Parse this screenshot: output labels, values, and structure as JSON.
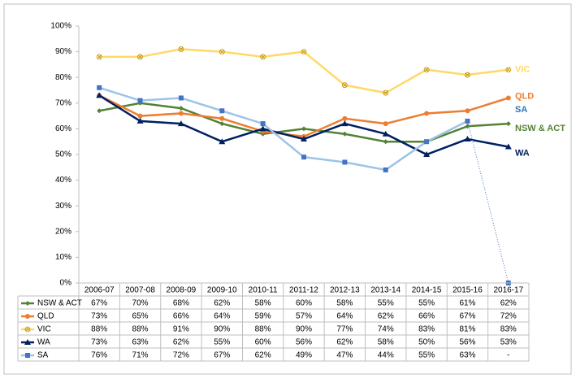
{
  "chart_data": {
    "type": "line",
    "categories": [
      "2006-07",
      "2007-08",
      "2008-09",
      "2009-10",
      "2010-11",
      "2011-12",
      "2012-13",
      "2013-14",
      "2014-15",
      "2015-16",
      "2016-17"
    ],
    "ylim": [
      0,
      100
    ],
    "yticks": [
      {
        "value": 0,
        "label": "0%"
      },
      {
        "value": 10,
        "label": "10%"
      },
      {
        "value": 20,
        "label": "20%"
      },
      {
        "value": 30,
        "label": "30%"
      },
      {
        "value": 40,
        "label": "40%"
      },
      {
        "value": 50,
        "label": "50%"
      },
      {
        "value": 60,
        "label": "60%"
      },
      {
        "value": 70,
        "label": "70%"
      },
      {
        "value": 80,
        "label": "80%"
      },
      {
        "value": 90,
        "label": "90%"
      },
      {
        "value": 100,
        "label": "100%"
      }
    ],
    "series": [
      {
        "name": "NSW & ACT",
        "color": "#548235",
        "marker": "diamond",
        "values": [
          67,
          70,
          68,
          62,
          58,
          60,
          58,
          55,
          55,
          61,
          62
        ],
        "value_labels": [
          "67%",
          "70%",
          "68%",
          "62%",
          "58%",
          "60%",
          "58%",
          "55%",
          "55%",
          "61%",
          "62%"
        ]
      },
      {
        "name": "QLD",
        "color": "#ED7D31",
        "marker": "circle",
        "values": [
          73,
          65,
          66,
          64,
          59,
          57,
          64,
          62,
          66,
          67,
          72
        ],
        "value_labels": [
          "73%",
          "65%",
          "66%",
          "64%",
          "59%",
          "57%",
          "64%",
          "62%",
          "66%",
          "67%",
          "72%"
        ]
      },
      {
        "name": "VIC",
        "color": "#FFD966",
        "marker": "xcircle",
        "values": [
          88,
          88,
          91,
          90,
          88,
          90,
          77,
          74,
          83,
          81,
          83
        ],
        "value_labels": [
          "88%",
          "88%",
          "91%",
          "90%",
          "88%",
          "90%",
          "77%",
          "74%",
          "83%",
          "81%",
          "83%"
        ]
      },
      {
        "name": "WA",
        "color": "#002060",
        "marker": "triangle",
        "values": [
          73,
          63,
          62,
          55,
          60,
          56,
          62,
          58,
          50,
          56,
          53
        ],
        "value_labels": [
          "73%",
          "63%",
          "62%",
          "55%",
          "60%",
          "56%",
          "62%",
          "58%",
          "50%",
          "56%",
          "53%"
        ]
      },
      {
        "name": "SA",
        "color": "#9DC3E6",
        "marker_color": "#4472C4",
        "marker": "square",
        "last_segment_dotted": true,
        "values": [
          76,
          71,
          72,
          67,
          62,
          49,
          47,
          44,
          55,
          63,
          0
        ],
        "value_labels": [
          "76%",
          "71%",
          "72%",
          "67%",
          "62%",
          "49%",
          "47%",
          "44%",
          "55%",
          "63%",
          "-"
        ]
      }
    ]
  }
}
